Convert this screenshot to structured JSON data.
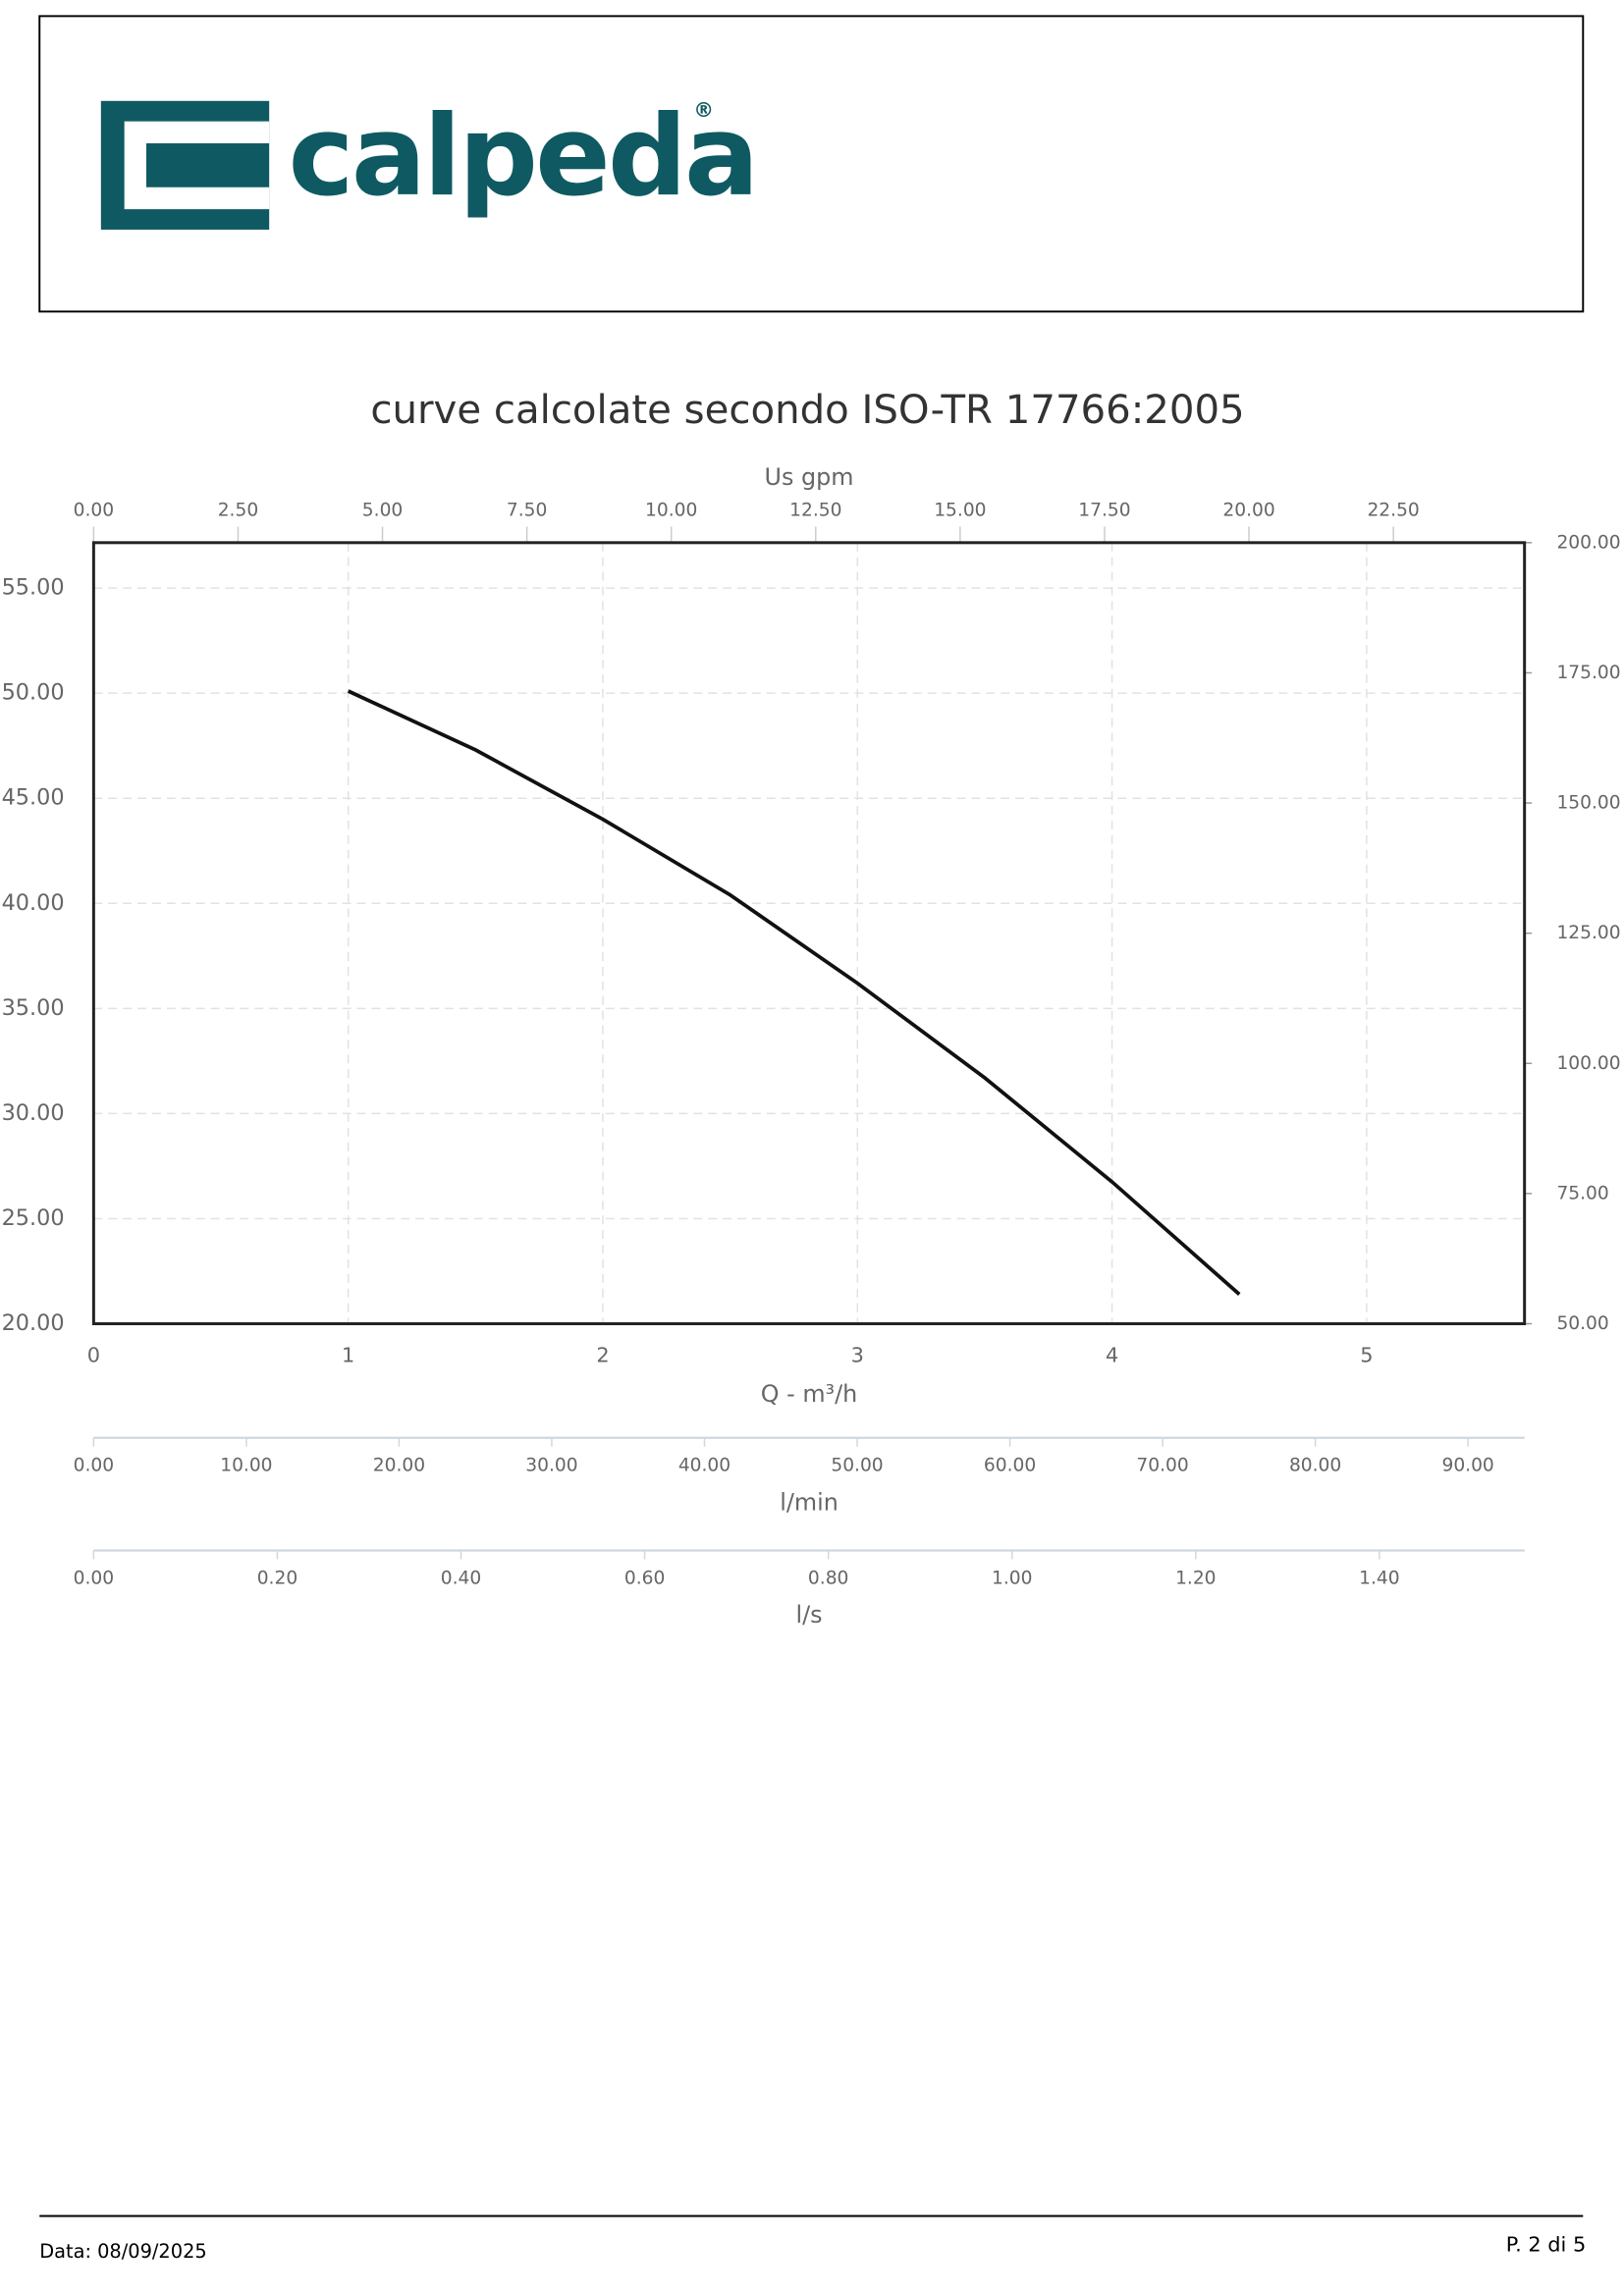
{
  "header": {
    "logo": "calpeda",
    "registered": "®"
  },
  "chart_data": {
    "type": "line",
    "title": "curve calcolate secondo ISO-TR 17766:2005",
    "x_label": "Q - m³/h",
    "x": [
      1,
      1.5,
      2,
      2.5,
      3,
      3.5,
      4,
      4.5
    ],
    "series": [
      {
        "color": "#111111",
        "values": [
          50.1,
          47.3,
          44.0,
          40.4,
          36.2,
          31.7,
          26.75,
          21.4
        ]
      }
    ],
    "xlim": [
      0,
      5.62
    ],
    "xticks": [
      0,
      1,
      2,
      3,
      4,
      5
    ],
    "ylim": [
      20,
      57.16
    ],
    "yticks": [
      {
        "value": 20,
        "label": "20.00"
      },
      {
        "value": 25,
        "label": "25.00"
      },
      {
        "value": 30,
        "label": "30.00"
      },
      {
        "value": 35,
        "label": "35.00"
      },
      {
        "value": 40,
        "label": "40.00"
      },
      {
        "value": 45,
        "label": "45.00"
      },
      {
        "value": 50,
        "label": "50.00"
      },
      {
        "value": 55,
        "label": "55.00"
      }
    ],
    "y2lim": [
      50,
      200
    ],
    "y2ticks": [
      {
        "value": 50,
        "label": "50.00"
      },
      {
        "value": 75,
        "label": "75.00"
      },
      {
        "value": 100,
        "label": "100.00"
      },
      {
        "value": 125,
        "label": "125.00"
      },
      {
        "value": 150,
        "label": "150.00"
      },
      {
        "value": 175,
        "label": "175.00"
      },
      {
        "value": 200,
        "label": "200.00"
      }
    ],
    "grid": true,
    "top_axis": {
      "label": "Us gpm",
      "xlim": [
        0,
        24.77
      ],
      "xticks": [
        {
          "value": 0,
          "label": "0.00"
        },
        {
          "value": 2.5,
          "label": "2.50"
        },
        {
          "value": 5,
          "label": "5.00"
        },
        {
          "value": 7.5,
          "label": "7.50"
        },
        {
          "value": 10,
          "label": "10.00"
        },
        {
          "value": 12.5,
          "label": "12.50"
        },
        {
          "value": 15,
          "label": "15.00"
        },
        {
          "value": 17.5,
          "label": "17.50"
        },
        {
          "value": 20,
          "label": "20.00"
        },
        {
          "value": 22.5,
          "label": "22.50"
        }
      ]
    },
    "bottom_axes": [
      {
        "label": "l/min",
        "xlim": [
          0,
          93.7
        ],
        "xticks": [
          {
            "value": 0,
            "label": "0.00"
          },
          {
            "value": 10,
            "label": "10.00"
          },
          {
            "value": 20,
            "label": "20.00"
          },
          {
            "value": 30,
            "label": "30.00"
          },
          {
            "value": 40,
            "label": "40.00"
          },
          {
            "value": 50,
            "label": "50.00"
          },
          {
            "value": 60,
            "label": "60.00"
          },
          {
            "value": 70,
            "label": "70.00"
          },
          {
            "value": 80,
            "label": "80.00"
          },
          {
            "value": 90,
            "label": "90.00"
          }
        ]
      },
      {
        "label": "l/s",
        "xlim": [
          0,
          1.558
        ],
        "xticks": [
          {
            "value": 0,
            "label": "0.00"
          },
          {
            "value": 0.2,
            "label": "0.20"
          },
          {
            "value": 0.4,
            "label": "0.40"
          },
          {
            "value": 0.6,
            "label": "0.60"
          },
          {
            "value": 0.8,
            "label": "0.80"
          },
          {
            "value": 1,
            "label": "1.00"
          },
          {
            "value": 1.2,
            "label": "1.20"
          },
          {
            "value": 1.4,
            "label": "1.40"
          }
        ]
      }
    ]
  },
  "footer": {
    "date": "Data: 08/09/2025",
    "page": "P. 2 di 5"
  }
}
